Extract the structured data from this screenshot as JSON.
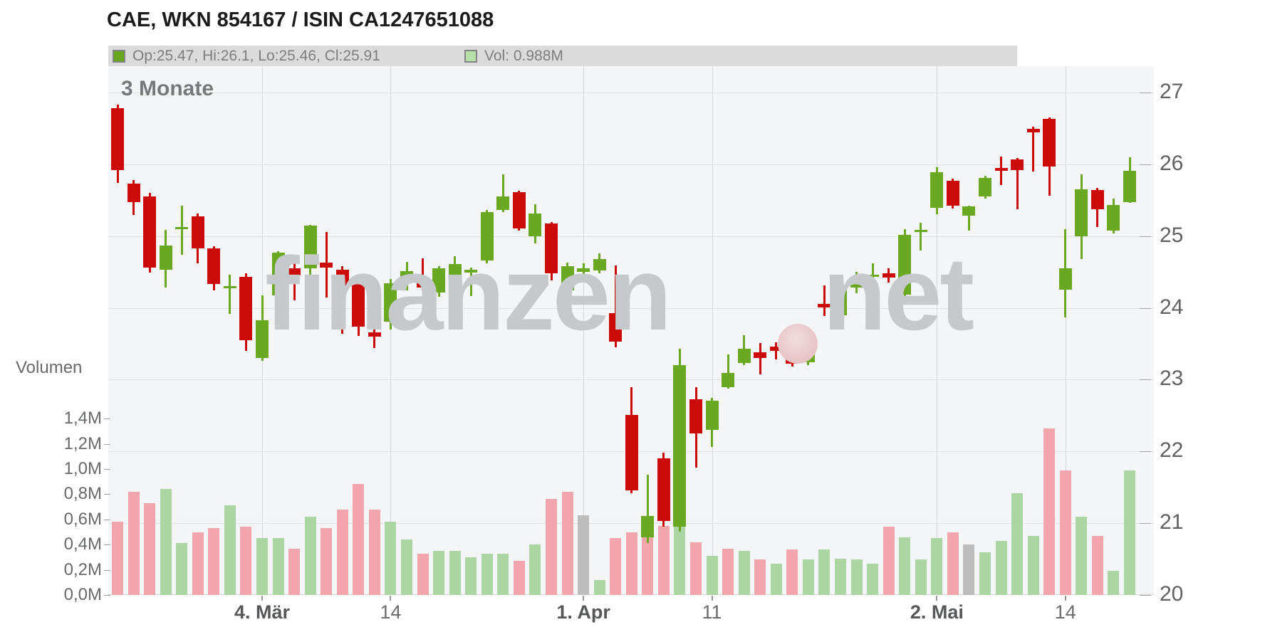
{
  "header": {
    "title": "CAE, WKN 854167 / ISIN CA1247651088"
  },
  "legend": {
    "ohlc_label": "Op:25.47, Hi:26.1, Lo:25.46, Cl:25.91",
    "ohlc_swatch_color": "#69a81e",
    "vol_label": "Vol: 0.988M",
    "vol_swatch_color": "#b7dfa9"
  },
  "chart_data": {
    "type": "candlestick",
    "title": "CAE, WKN 854167 / ISIN CA1247651088",
    "period_label": "3 Monate",
    "volume_axis_title": "Volumen",
    "watermark": {
      "text_left": "finanzen",
      "text_right": "net"
    },
    "price_axis": {
      "range": [
        20,
        27
      ],
      "ticks": [
        27,
        26,
        25,
        24,
        23,
        22,
        21,
        20
      ]
    },
    "volume_axis": {
      "range_m": [
        0,
        1.4
      ],
      "ticks": [
        {
          "value": 1.4,
          "label": "1,4M"
        },
        {
          "value": 1.2,
          "label": "1,2M"
        },
        {
          "value": 1.0,
          "label": "1,0M"
        },
        {
          "value": 0.8,
          "label": "0,8M"
        },
        {
          "value": 0.6,
          "label": "0,6M"
        },
        {
          "value": 0.4,
          "label": "0,4M"
        },
        {
          "value": 0.2,
          "label": "0,2M"
        },
        {
          "value": 0.0,
          "label": "0,0M"
        }
      ]
    },
    "x_axis": {
      "ticks": [
        {
          "index": 9,
          "label": "4. Mär",
          "bold": true
        },
        {
          "index": 17,
          "label": "14",
          "bold": false
        },
        {
          "index": 29,
          "label": "1. Apr",
          "bold": true
        },
        {
          "index": 37,
          "label": "11",
          "bold": false
        },
        {
          "index": 51,
          "label": "2. Mai",
          "bold": true
        },
        {
          "index": 59,
          "label": "14",
          "bold": false
        }
      ]
    },
    "colors": {
      "candle_up": "#69a820",
      "candle_down": "#cc0a0a",
      "vol_up": "#abd6a3",
      "vol_down": "#f2a6ab",
      "vol_neutral": "#bdbdbd",
      "plot_bg": "#f4f5f6"
    },
    "candles_format": [
      "open",
      "high",
      "low",
      "close",
      "volume_millions",
      "volume_color"
    ],
    "candles": [
      [
        26.78,
        26.83,
        25.74,
        25.92,
        0.58,
        "down"
      ],
      [
        25.73,
        25.78,
        25.29,
        25.47,
        0.82,
        "down"
      ],
      [
        25.55,
        25.6,
        24.49,
        24.56,
        0.73,
        "down"
      ],
      [
        24.53,
        25.09,
        24.28,
        24.87,
        0.84,
        "up"
      ],
      [
        25.1,
        25.42,
        24.74,
        25.13,
        0.41,
        "up"
      ],
      [
        25.27,
        25.31,
        24.62,
        24.83,
        0.5,
        "down"
      ],
      [
        24.83,
        24.86,
        24.24,
        24.33,
        0.53,
        "down"
      ],
      [
        24.27,
        24.46,
        23.92,
        24.3,
        0.71,
        "up"
      ],
      [
        24.43,
        24.48,
        23.4,
        23.55,
        0.54,
        "down"
      ],
      [
        23.3,
        24.17,
        23.26,
        23.83,
        0.45,
        "up"
      ],
      [
        24.17,
        24.79,
        24.0,
        24.77,
        0.45,
        "up"
      ],
      [
        24.55,
        24.73,
        24.1,
        24.45,
        0.37,
        "down"
      ],
      [
        24.55,
        25.16,
        24.25,
        25.15,
        0.62,
        "up"
      ],
      [
        24.63,
        25.06,
        24.14,
        24.56,
        0.53,
        "down"
      ],
      [
        24.53,
        24.58,
        23.64,
        24.28,
        0.68,
        "down"
      ],
      [
        24.35,
        24.4,
        23.61,
        23.74,
        0.88,
        "down"
      ],
      [
        23.66,
        23.99,
        23.44,
        23.6,
        0.68,
        "down"
      ],
      [
        23.81,
        24.4,
        23.7,
        24.34,
        0.58,
        "up"
      ],
      [
        24.36,
        24.64,
        24.24,
        24.51,
        0.44,
        "up"
      ],
      [
        24.41,
        24.69,
        24.24,
        24.28,
        0.33,
        "down"
      ],
      [
        24.21,
        24.58,
        24.15,
        24.55,
        0.35,
        "up"
      ],
      [
        24.24,
        24.72,
        24.2,
        24.61,
        0.35,
        "up"
      ],
      [
        24.49,
        24.56,
        24.16,
        24.53,
        0.3,
        "up"
      ],
      [
        24.66,
        25.36,
        24.62,
        25.33,
        0.33,
        "up"
      ],
      [
        25.36,
        25.86,
        25.33,
        25.55,
        0.33,
        "up"
      ],
      [
        25.61,
        25.63,
        25.08,
        25.11,
        0.27,
        "down"
      ],
      [
        25.0,
        25.44,
        24.9,
        25.31,
        0.4,
        "up"
      ],
      [
        25.18,
        25.2,
        24.38,
        24.48,
        0.76,
        "down"
      ],
      [
        24.24,
        24.63,
        24.2,
        24.58,
        0.82,
        "down"
      ],
      [
        24.5,
        24.62,
        24.42,
        24.55,
        0.63,
        "neutral"
      ],
      [
        24.52,
        24.76,
        24.48,
        24.68,
        0.12,
        "up"
      ],
      [
        23.93,
        24.59,
        23.45,
        23.53,
        0.45,
        "down"
      ],
      [
        22.51,
        22.9,
        21.42,
        21.46,
        0.5,
        "down"
      ],
      [
        20.8,
        21.68,
        20.72,
        21.1,
        0.62,
        "down"
      ],
      [
        21.9,
        21.98,
        20.95,
        21.03,
        0.55,
        "down"
      ],
      [
        20.95,
        23.43,
        20.88,
        23.2,
        0.6,
        "up"
      ],
      [
        22.73,
        22.9,
        21.77,
        22.25,
        0.42,
        "down"
      ],
      [
        22.3,
        22.75,
        22.06,
        22.71,
        0.31,
        "up"
      ],
      [
        22.9,
        23.35,
        22.88,
        23.09,
        0.37,
        "down"
      ],
      [
        23.23,
        23.62,
        23.2,
        23.43,
        0.35,
        "up"
      ],
      [
        23.38,
        23.51,
        23.07,
        23.3,
        0.28,
        "down"
      ],
      [
        23.46,
        23.52,
        23.28,
        23.4,
        0.25,
        "up"
      ],
      [
        23.42,
        23.46,
        23.18,
        23.22,
        0.36,
        "down"
      ],
      [
        23.24,
        23.45,
        23.2,
        23.38,
        0.28,
        "up"
      ],
      [
        24.06,
        24.31,
        23.89,
        24.01,
        0.36,
        "up"
      ],
      [
        23.9,
        24.31,
        23.88,
        24.28,
        0.29,
        "up"
      ],
      [
        24.28,
        24.5,
        24.2,
        24.43,
        0.28,
        "up"
      ],
      [
        24.44,
        24.62,
        24.3,
        24.46,
        0.25,
        "up"
      ],
      [
        24.48,
        24.55,
        24.35,
        24.42,
        0.54,
        "down"
      ],
      [
        24.18,
        25.1,
        24.1,
        25.02,
        0.46,
        "up"
      ],
      [
        25.08,
        25.19,
        24.8,
        25.09,
        0.28,
        "up"
      ],
      [
        25.39,
        25.96,
        25.3,
        25.89,
        0.45,
        "up"
      ],
      [
        25.77,
        25.8,
        25.38,
        25.42,
        0.5,
        "down"
      ],
      [
        25.28,
        25.42,
        25.08,
        25.41,
        0.4,
        "neutral"
      ],
      [
        25.55,
        25.84,
        25.52,
        25.81,
        0.34,
        "up"
      ],
      [
        25.95,
        26.11,
        25.71,
        25.91,
        0.43,
        "up"
      ],
      [
        26.07,
        26.09,
        25.37,
        25.92,
        0.81,
        "up"
      ],
      [
        26.49,
        26.52,
        25.9,
        26.44,
        0.47,
        "up"
      ],
      [
        26.63,
        26.65,
        25.56,
        25.97,
        1.32,
        "down"
      ],
      [
        24.25,
        25.1,
        23.87,
        24.55,
        0.99,
        "down"
      ],
      [
        25.0,
        25.86,
        24.68,
        25.65,
        0.62,
        "up"
      ],
      [
        25.64,
        25.67,
        25.13,
        25.37,
        0.47,
        "down"
      ],
      [
        25.08,
        25.52,
        25.04,
        25.43,
        0.19,
        "up"
      ],
      [
        25.47,
        26.1,
        25.46,
        25.91,
        0.988,
        "up"
      ]
    ]
  }
}
